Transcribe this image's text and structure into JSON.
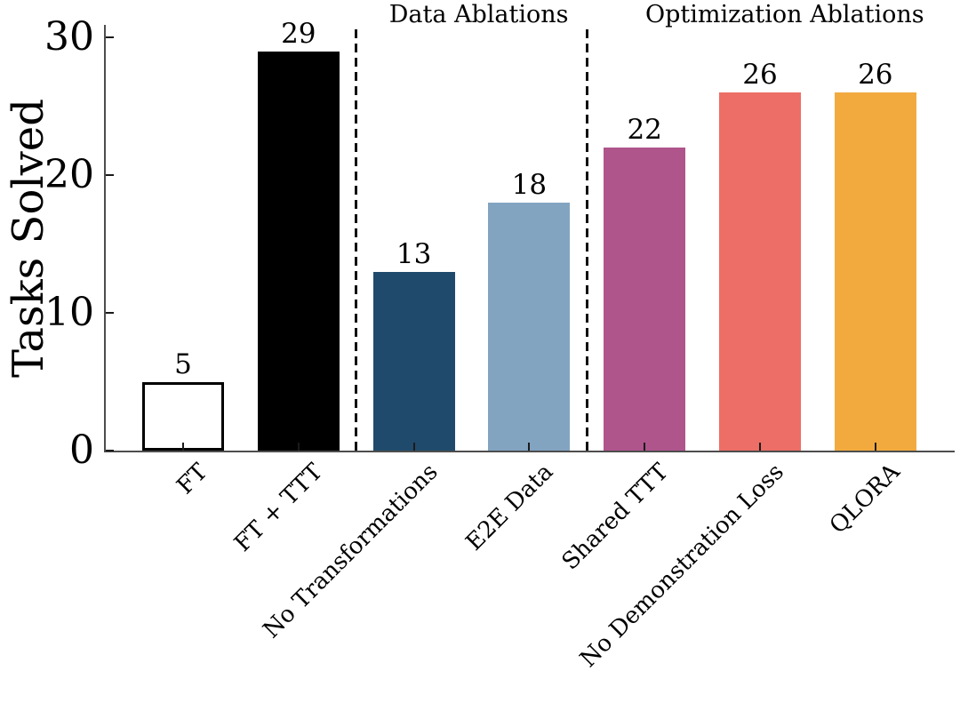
{
  "chart_data": {
    "type": "bar",
    "title": "",
    "ylabel": "Tasks Solved",
    "xlabel": "",
    "ylim": [
      0,
      31
    ],
    "yticks": [
      0,
      10,
      20,
      30
    ],
    "grid": false,
    "legend": "none",
    "tick_direction": "in",
    "categories": [
      "FT",
      "FT + TTT",
      "No Transformations",
      "E2E Data",
      "Shared TTT",
      "No Demonstration Loss",
      "QLORA"
    ],
    "values": [
      5,
      29,
      13,
      18,
      22,
      26,
      26
    ],
    "bar_value_labels": [
      "5",
      "29",
      "13",
      "18",
      "22",
      "26",
      "26"
    ],
    "bar_colors": [
      "#ffffff",
      "#000000",
      "#204a6b",
      "#82a4c1",
      "#af558c",
      "#ec6e66",
      "#f2aa3e"
    ],
    "bar_edge_colors": [
      "#000000",
      "#000000",
      "",
      "",
      "",
      "",
      ""
    ],
    "sections": [
      {
        "label": "Data Ablations",
        "axes_frac_x": 0.44
      },
      {
        "label": "Optimization Ablations",
        "axes_frac_x": 0.8
      }
    ],
    "separator_after_bar_index": [
      1,
      3
    ],
    "separator_style": "dashed",
    "separator_color": "#111111",
    "axis_color": "#4d4d4d",
    "text_color": "#000000",
    "background_color": "#ffffff"
  }
}
